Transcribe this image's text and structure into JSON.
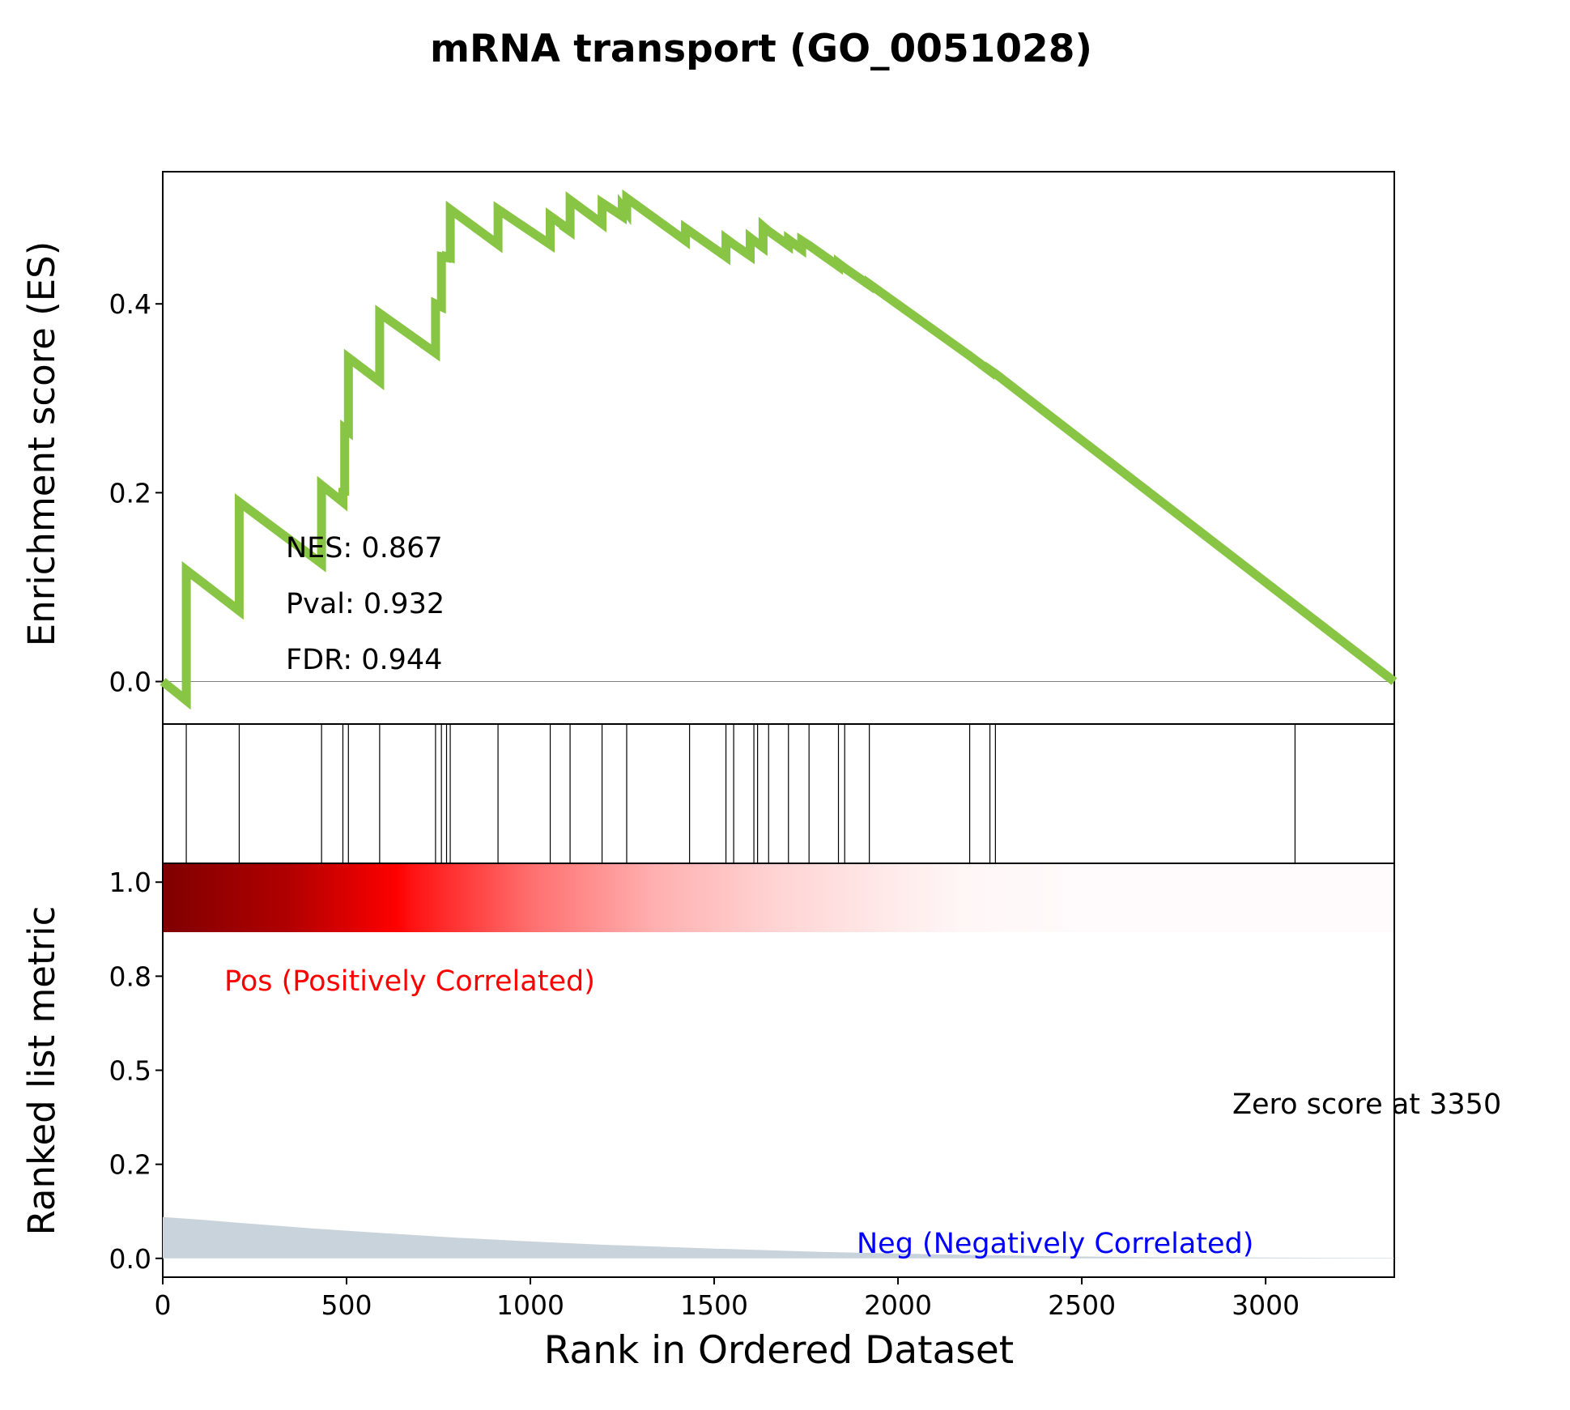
{
  "figure_title": "mRNA transport (GO_0051028)",
  "chart_data": {
    "type": "line",
    "title": "mRNA transport (GO_0051028)",
    "xlabel": "Rank in Ordered Dataset",
    "xlim": [
      0,
      3350
    ],
    "x_ticks": [
      "0",
      "500",
      "1000",
      "1500",
      "2000",
      "2500",
      "3000"
    ],
    "colors": {
      "es_line": "#88c544",
      "metric_fill": "#c9d3db",
      "pos_label": "#ff0000",
      "neg_label": "#0000ff",
      "hits": "#000000"
    },
    "es_panel": {
      "ylabel": "Enrichment score (ES)",
      "ylim": [
        -0.045,
        0.54
      ],
      "y_ticks": [
        "0.0",
        "0.2",
        "0.4"
      ],
      "zero_line": true,
      "x": [
        0,
        64,
        64,
        208,
        208,
        432,
        432,
        490,
        490,
        495,
        495,
        505,
        505,
        590,
        590,
        742,
        742,
        758,
        758,
        772,
        772,
        782,
        782,
        912,
        912,
        1054,
        1054,
        1090,
        1090,
        1108,
        1108,
        1195,
        1195,
        1250,
        1250,
        1262,
        1262,
        1422,
        1422,
        1433,
        1433,
        1532,
        1532,
        1553,
        1553,
        1598,
        1598,
        1608,
        1608,
        1633,
        1633,
        1648,
        1648,
        1702,
        1702,
        1738,
        1738,
        1758,
        1758,
        1838,
        1838,
        1855,
        1855,
        1922,
        1922,
        2195,
        2195,
        2250,
        2250,
        2265,
        2265,
        3350
      ],
      "y": [
        0.0,
        -0.02,
        0.118,
        0.075,
        0.19,
        0.125,
        0.208,
        0.19,
        0.205,
        0.197,
        0.268,
        0.265,
        0.343,
        0.318,
        0.39,
        0.348,
        0.4,
        0.397,
        0.45,
        0.449,
        0.45,
        0.449,
        0.5,
        0.463,
        0.5,
        0.463,
        0.493,
        0.483,
        0.482,
        0.477,
        0.51,
        0.485,
        0.507,
        0.493,
        0.503,
        0.497,
        0.512,
        0.467,
        0.48,
        0.477,
        0.477,
        0.45,
        0.469,
        0.463,
        0.463,
        0.451,
        0.47,
        0.467,
        0.467,
        0.46,
        0.482,
        0.477,
        0.477,
        0.462,
        0.468,
        0.458,
        0.467,
        0.462,
        0.462,
        0.44,
        0.443,
        0.438,
        0.438,
        0.42,
        0.421,
        0.345,
        0.345,
        0.329,
        0.33,
        0.326,
        0.326,
        0.0
      ]
    },
    "hit_positions": [
      64,
      208,
      432,
      490,
      505,
      590,
      742,
      758,
      772,
      782,
      912,
      1054,
      1108,
      1195,
      1262,
      1433,
      1532,
      1553,
      1608,
      1618,
      1648,
      1702,
      1758,
      1838,
      1855,
      1922,
      2195,
      2250,
      2265,
      3080
    ],
    "stats": {
      "nes": "NES: 0.867",
      "pval": "Pval: 0.932",
      "fdr": "FDR: 0.944"
    },
    "metric_panel": {
      "ylabel": "Ranked list metric",
      "ylim": [
        -0.05,
        1.05
      ],
      "y_ticks": [
        "0.0",
        "0.2",
        "0.5",
        "0.8",
        "1.0"
      ],
      "y_tick_values": [
        0.0,
        0.25,
        0.5,
        0.75,
        1.0
      ],
      "x": [
        0,
        100,
        200,
        400,
        600,
        800,
        1000,
        1200,
        1500,
        1800,
        2100,
        2400,
        2700,
        3000,
        3350
      ],
      "y": [
        0.11,
        0.103,
        0.095,
        0.08,
        0.067,
        0.055,
        0.045,
        0.036,
        0.026,
        0.017,
        0.011,
        0.006,
        0.003,
        0.002,
        0.001
      ],
      "pos_label": "Pos (Positively Correlated)",
      "neg_label": "Neg (Negatively Correlated)",
      "zero_score": "Zero score at 3350"
    }
  }
}
